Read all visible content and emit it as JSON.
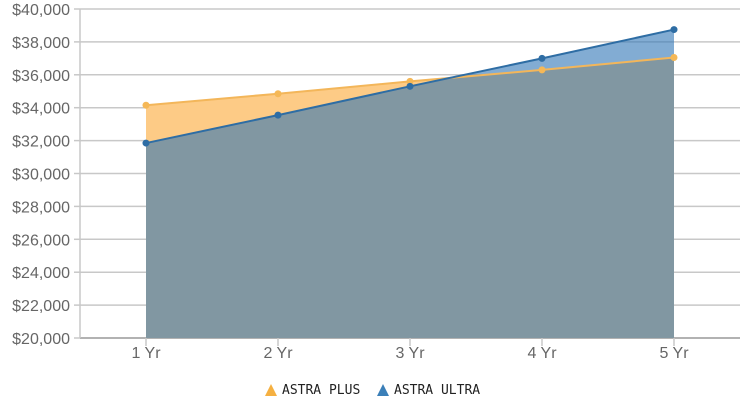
{
  "chart_data": {
    "type": "area",
    "title": "",
    "xlabel": "",
    "ylabel": "",
    "categories": [
      "1 Yr",
      "2 Yr",
      "3 Yr",
      "4 Yr",
      "5 Yr"
    ],
    "ylim": [
      20000,
      40000
    ],
    "yticks": [
      20000,
      22000,
      24000,
      26000,
      28000,
      30000,
      32000,
      34000,
      36000,
      38000,
      40000
    ],
    "ytick_labels": [
      "$20,000",
      "$22,000",
      "$24,000",
      "$26,000",
      "$28,000",
      "$30,000",
      "$32,000",
      "$34,000",
      "$36,000",
      "$38,000",
      "$40,000"
    ],
    "grid": true,
    "legend_position": "bottom-center",
    "series": [
      {
        "name": "ASTRA PLUS",
        "values": [
          34150,
          34850,
          35600,
          36300,
          37050
        ],
        "color": "#f5b041"
      },
      {
        "name": "ASTRA ULTRA",
        "values": [
          31850,
          33550,
          35300,
          37000,
          38750
        ],
        "color": "#2e75b6"
      }
    ]
  }
}
